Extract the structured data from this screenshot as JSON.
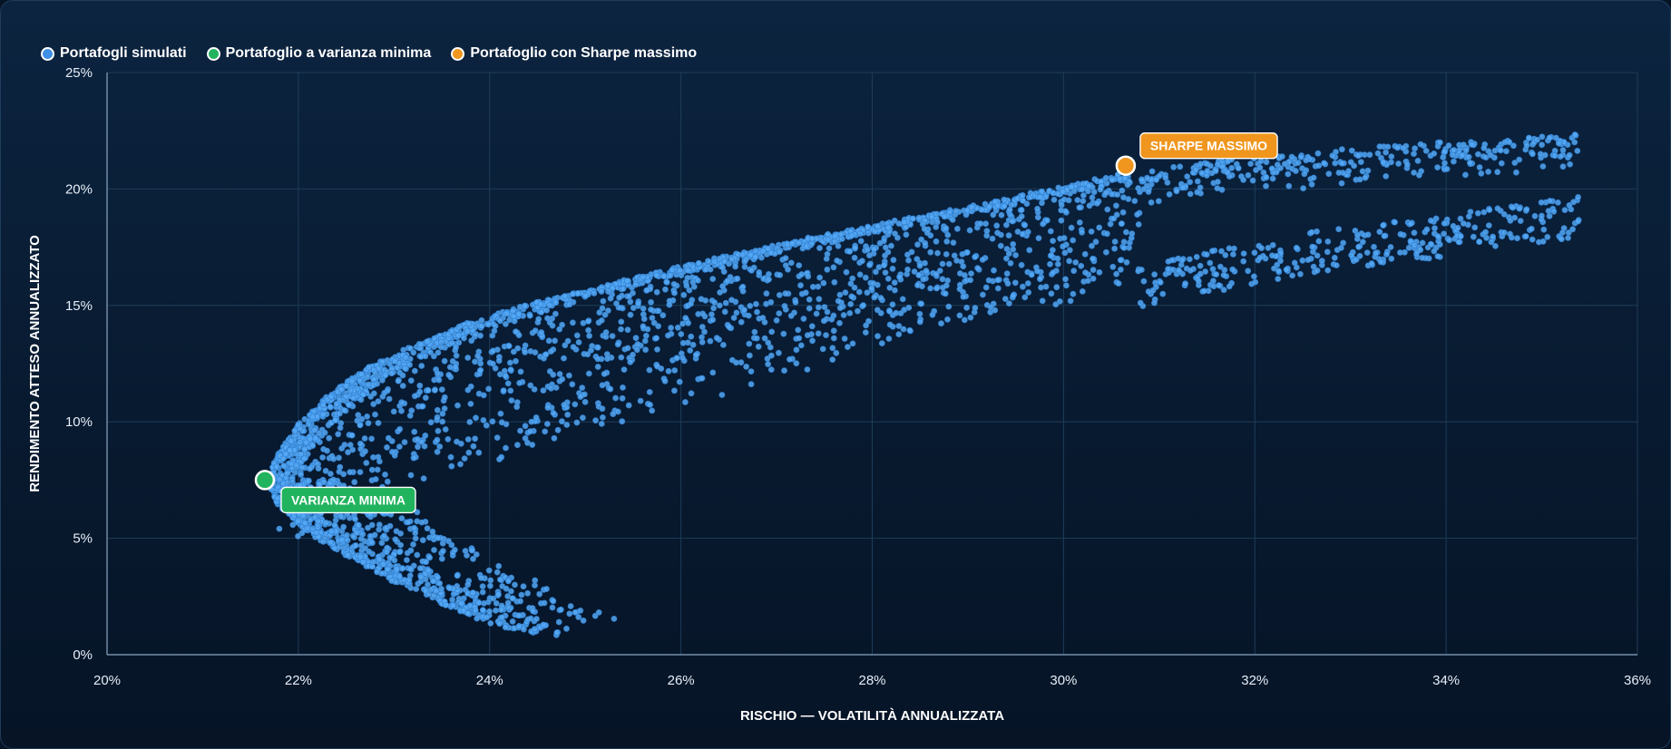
{
  "legend": {
    "items": [
      {
        "label": "Portafogli simulati",
        "color": "#3f8fe6"
      },
      {
        "label": "Portafoglio a varianza minima",
        "color": "#22b35e"
      },
      {
        "label": "Portafoglio con Sharpe massimo",
        "color": "#f0961e"
      }
    ]
  },
  "chart_data": {
    "type": "scatter",
    "xlabel": "RISCHIO — VOLATILITÀ ANNUALIZZATA",
    "ylabel": "RENDIMENTO ATTESO ANNUALIZZATO",
    "xlim": [
      20,
      36
    ],
    "ylim": [
      0,
      25
    ],
    "x_ticks": [
      "20%",
      "22%",
      "24%",
      "26%",
      "28%",
      "30%",
      "32%",
      "34%",
      "36%"
    ],
    "y_ticks": [
      "0%",
      "5%",
      "10%",
      "15%",
      "20%",
      "25%"
    ],
    "x_tick_values": [
      20,
      22,
      24,
      26,
      28,
      30,
      32,
      34,
      36
    ],
    "y_tick_values": [
      0,
      5,
      10,
      15,
      20,
      25
    ],
    "grid": true,
    "legend_position": "top-left",
    "series": [
      {
        "name": "Portafogli simulati",
        "color": "#55a8f5",
        "frontier_upper": [
          [
            21.65,
            7.5
          ],
          [
            21.8,
            8.7
          ],
          [
            22.0,
            9.9
          ],
          [
            22.3,
            11.1
          ],
          [
            22.7,
            12.3
          ],
          [
            23.2,
            13.3
          ],
          [
            23.8,
            14.3
          ],
          [
            24.5,
            15.2
          ],
          [
            25.3,
            16.0
          ],
          [
            26.2,
            16.9
          ],
          [
            27.2,
            17.8
          ],
          [
            28.3,
            18.7
          ],
          [
            29.4,
            19.6
          ],
          [
            30.5,
            20.6
          ]
        ],
        "frontier_lower": [
          [
            21.65,
            7.5
          ],
          [
            21.8,
            6.4
          ],
          [
            22.1,
            5.3
          ],
          [
            22.5,
            4.3
          ],
          [
            23.0,
            3.2
          ],
          [
            23.5,
            2.2
          ],
          [
            24.0,
            1.4
          ],
          [
            24.45,
            0.9
          ]
        ],
        "upper_arm_tail": [
          [
            30.5,
            20.6
          ],
          [
            32.0,
            21.4
          ],
          [
            33.5,
            21.9
          ],
          [
            35.6,
            22.4
          ]
        ],
        "lower_arm_ridge": [
          [
            23.0,
            6.5
          ],
          [
            24.5,
            8.8
          ],
          [
            26.5,
            11.2
          ],
          [
            28.5,
            13.5
          ],
          [
            30.5,
            15.6
          ],
          [
            32.5,
            17.2
          ],
          [
            34.0,
            18.0
          ],
          [
            35.4,
            18.8
          ]
        ],
        "approx_point_count": 4000
      },
      {
        "name": "Portafoglio a varianza minima",
        "color": "#22b35e",
        "points": [
          [
            21.65,
            7.5
          ]
        ]
      },
      {
        "name": "Portafoglio con Sharpe massimo",
        "color": "#f0961e",
        "points": [
          [
            30.65,
            21.0
          ]
        ]
      }
    ],
    "annotations": [
      {
        "text": "VARIANZA MINIMA",
        "x": 21.65,
        "y": 7.5,
        "color": "#22b35e"
      },
      {
        "text": "SHARPE MASSIMO",
        "x": 30.65,
        "y": 21.0,
        "color": "#f0961e"
      }
    ]
  }
}
